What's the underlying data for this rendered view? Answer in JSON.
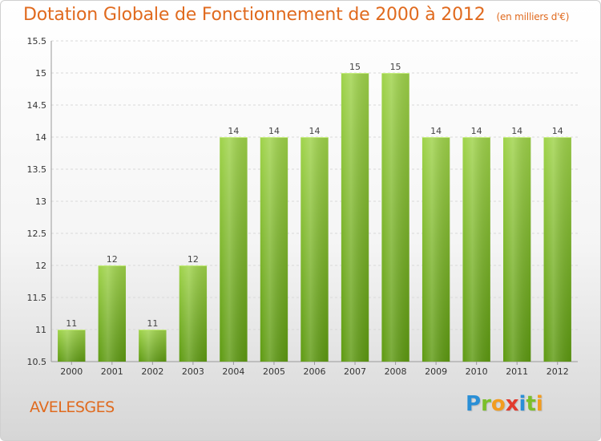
{
  "header": {
    "title": "Dotation Globale de Fonctionnement de 2000 à 2012",
    "subtitle": "(en milliers d'€)"
  },
  "footer": {
    "commune": "AVELESGES",
    "logo": {
      "letters": [
        "P",
        "r",
        "o",
        "x",
        "i",
        "t",
        "i"
      ],
      "colors": [
        "#2a8fd6",
        "#7bbf2a",
        "#f29c1f",
        "#e23b2e",
        "#2a8fd6",
        "#7bbf2a",
        "#f29c1f"
      ]
    }
  },
  "chart_data": {
    "type": "bar",
    "categories": [
      "2000",
      "2001",
      "2002",
      "2003",
      "2004",
      "2005",
      "2006",
      "2007",
      "2008",
      "2009",
      "2010",
      "2011",
      "2012"
    ],
    "values": [
      11,
      12,
      11,
      12,
      14,
      14,
      14,
      15,
      15,
      14,
      14,
      14,
      14
    ],
    "ylim": [
      10.5,
      15.5
    ],
    "yticks": [
      10.5,
      11,
      11.5,
      12,
      12.5,
      13,
      13.5,
      14,
      14.5,
      15,
      15.5
    ],
    "ytick_labels": [
      "10.5",
      "11",
      "11.5",
      "12",
      "12.5",
      "13",
      "13.5",
      "14",
      "14.5",
      "15",
      "15.5"
    ],
    "grid": true,
    "colors": {
      "bar_light": "#9fd34a",
      "bar_dark": "#5e9a12",
      "grid": "#d9d9d9",
      "axis": "#999999"
    }
  }
}
